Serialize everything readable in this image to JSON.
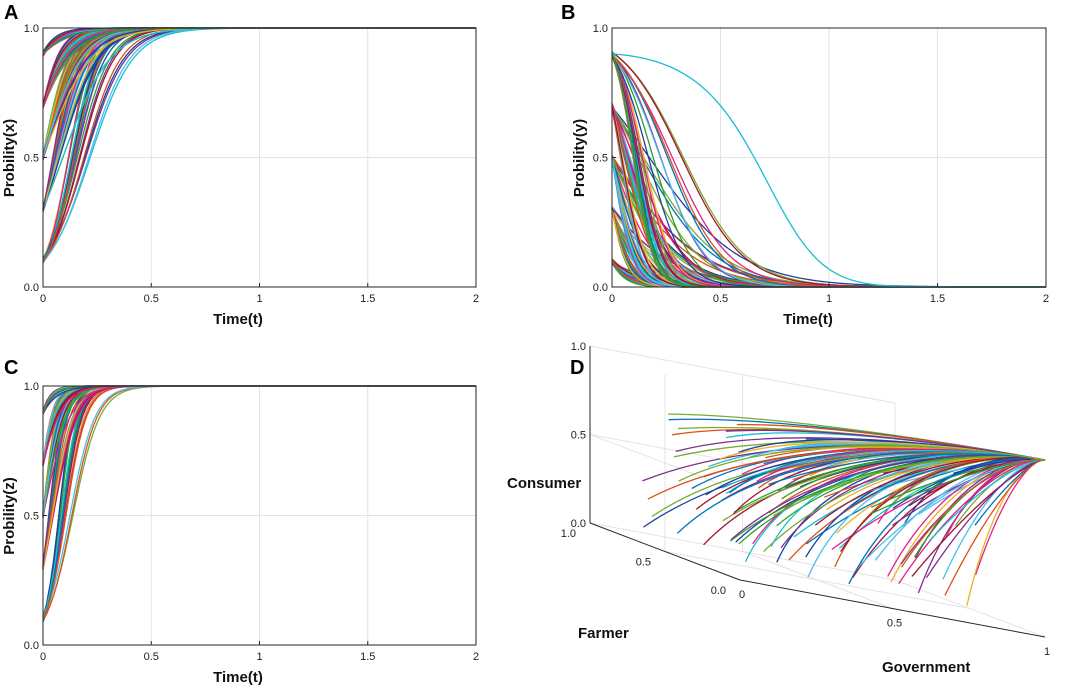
{
  "palette": [
    "#0072BD",
    "#D95319",
    "#EDB120",
    "#7E2F8E",
    "#77AC30",
    "#4DBEEE",
    "#A2142F",
    "#E0218A",
    "#1F3FA0",
    "#2CA02C",
    "#17BECF"
  ],
  "chart_data": [
    {
      "panel": "A",
      "type": "line",
      "xlabel": "Time(t)",
      "ylabel": "Probility(x)",
      "xlim": [
        0,
        2
      ],
      "ylim": [
        0,
        1
      ],
      "xticks": [
        "0",
        "0.5",
        "1",
        "1.5",
        "2"
      ],
      "yticks": [
        "0.0",
        "0.5",
        "1.0"
      ],
      "initial_values": [
        0.1,
        0.3,
        0.5,
        0.7,
        0.9
      ],
      "steady_state": 1.0,
      "trend": "all trajectories rise from their initial value and converge to 1.0 by t≈0.8"
    },
    {
      "panel": "B",
      "type": "line",
      "xlabel": "Time(t)",
      "ylabel": "Probility(y)",
      "xlim": [
        0,
        2
      ],
      "ylim": [
        0,
        1
      ],
      "xticks": [
        "0",
        "0.5",
        "1",
        "1.5",
        "2"
      ],
      "yticks": [
        "0.0",
        "0.5",
        "1.0"
      ],
      "initial_values": [
        0.1,
        0.3,
        0.5,
        0.7,
        0.9
      ],
      "steady_state": 0.0,
      "trend": "all trajectories decay toward 0.0; slowest curve reaches 0 near t≈1.5"
    },
    {
      "panel": "C",
      "type": "line",
      "xlabel": "Time(t)",
      "ylabel": "Probility(z)",
      "xlim": [
        0,
        2
      ],
      "ylim": [
        0,
        1
      ],
      "xticks": [
        "0",
        "0.5",
        "1",
        "1.5",
        "2"
      ],
      "yticks": [
        "0.0",
        "0.5",
        "1.0"
      ],
      "initial_values": [
        0.1,
        0.3,
        0.5,
        0.7,
        0.9
      ],
      "steady_state": 1.0,
      "trend": "all trajectories rise quickly and converge to 1.0 by t≈0.45"
    },
    {
      "panel": "D",
      "type": "line",
      "xlabel": "Government",
      "ylabel": "Farmer",
      "zlabel": "Consumer",
      "xticks": [
        "0",
        "0.5",
        "1"
      ],
      "yticks": [
        "0.0",
        "0.5",
        "1.0"
      ],
      "zticks": [
        "0.0",
        "0.5",
        "1.0"
      ],
      "equilibrium": [
        1,
        0,
        1
      ],
      "trend": "3D trajectories from many initial points all converge to the point (Government=1, Farmer=0, Consumer=1)"
    }
  ]
}
